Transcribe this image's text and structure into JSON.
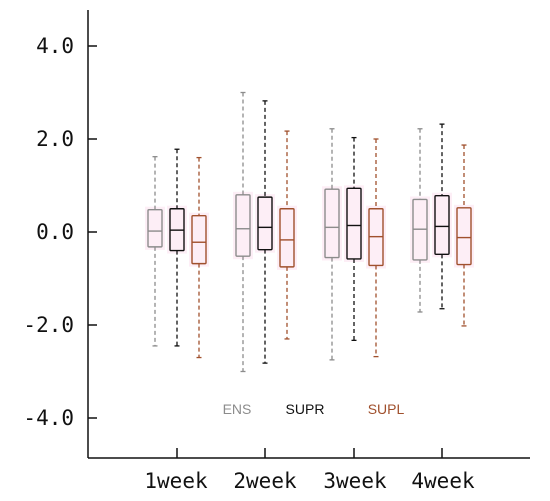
{
  "chart_data": {
    "type": "boxplot",
    "categories": [
      "1week",
      "2week",
      "3week",
      "4week"
    ],
    "ylim": [
      -4.8,
      4.8
    ],
    "yticks": [
      4.0,
      2.0,
      0.0,
      -2.0,
      -4.0
    ],
    "ytick_labels": [
      "4.0",
      "2.0",
      "0.0",
      "-2.0",
      "-4.0"
    ],
    "legend_position": "bottom-center",
    "colors": {
      "ENS": "#8c8c8c",
      "SUPR": "#111111",
      "SUPL": "#a0502d",
      "fill": "#fdeef6"
    },
    "series": [
      {
        "name": "ENS",
        "boxes": [
          {
            "min": -2.45,
            "q1": -0.32,
            "median": 0.02,
            "q3": 0.48,
            "max": 1.62
          },
          {
            "min": -3.0,
            "q1": -0.52,
            "median": 0.07,
            "q3": 0.8,
            "max": 3.0
          },
          {
            "min": -2.75,
            "q1": -0.55,
            "median": 0.1,
            "q3": 0.92,
            "max": 2.22
          },
          {
            "min": -1.72,
            "q1": -0.6,
            "median": 0.06,
            "q3": 0.7,
            "max": 2.22
          }
        ]
      },
      {
        "name": "SUPR",
        "boxes": [
          {
            "min": -2.45,
            "q1": -0.4,
            "median": 0.04,
            "q3": 0.5,
            "max": 1.78
          },
          {
            "min": -2.82,
            "q1": -0.38,
            "median": 0.1,
            "q3": 0.75,
            "max": 2.82
          },
          {
            "min": -2.33,
            "q1": -0.58,
            "median": 0.14,
            "q3": 0.94,
            "max": 2.03
          },
          {
            "min": -1.65,
            "q1": -0.48,
            "median": 0.12,
            "q3": 0.78,
            "max": 2.32
          }
        ]
      },
      {
        "name": "SUPL",
        "boxes": [
          {
            "min": -2.7,
            "q1": -0.68,
            "median": -0.22,
            "q3": 0.35,
            "max": 1.6
          },
          {
            "min": -2.3,
            "q1": -0.75,
            "median": -0.17,
            "q3": 0.5,
            "max": 2.17
          },
          {
            "min": -2.68,
            "q1": -0.72,
            "median": -0.1,
            "q3": 0.5,
            "max": 2.0
          },
          {
            "min": -2.02,
            "q1": -0.7,
            "median": -0.12,
            "q3": 0.52,
            "max": 1.87
          }
        ]
      }
    ]
  }
}
